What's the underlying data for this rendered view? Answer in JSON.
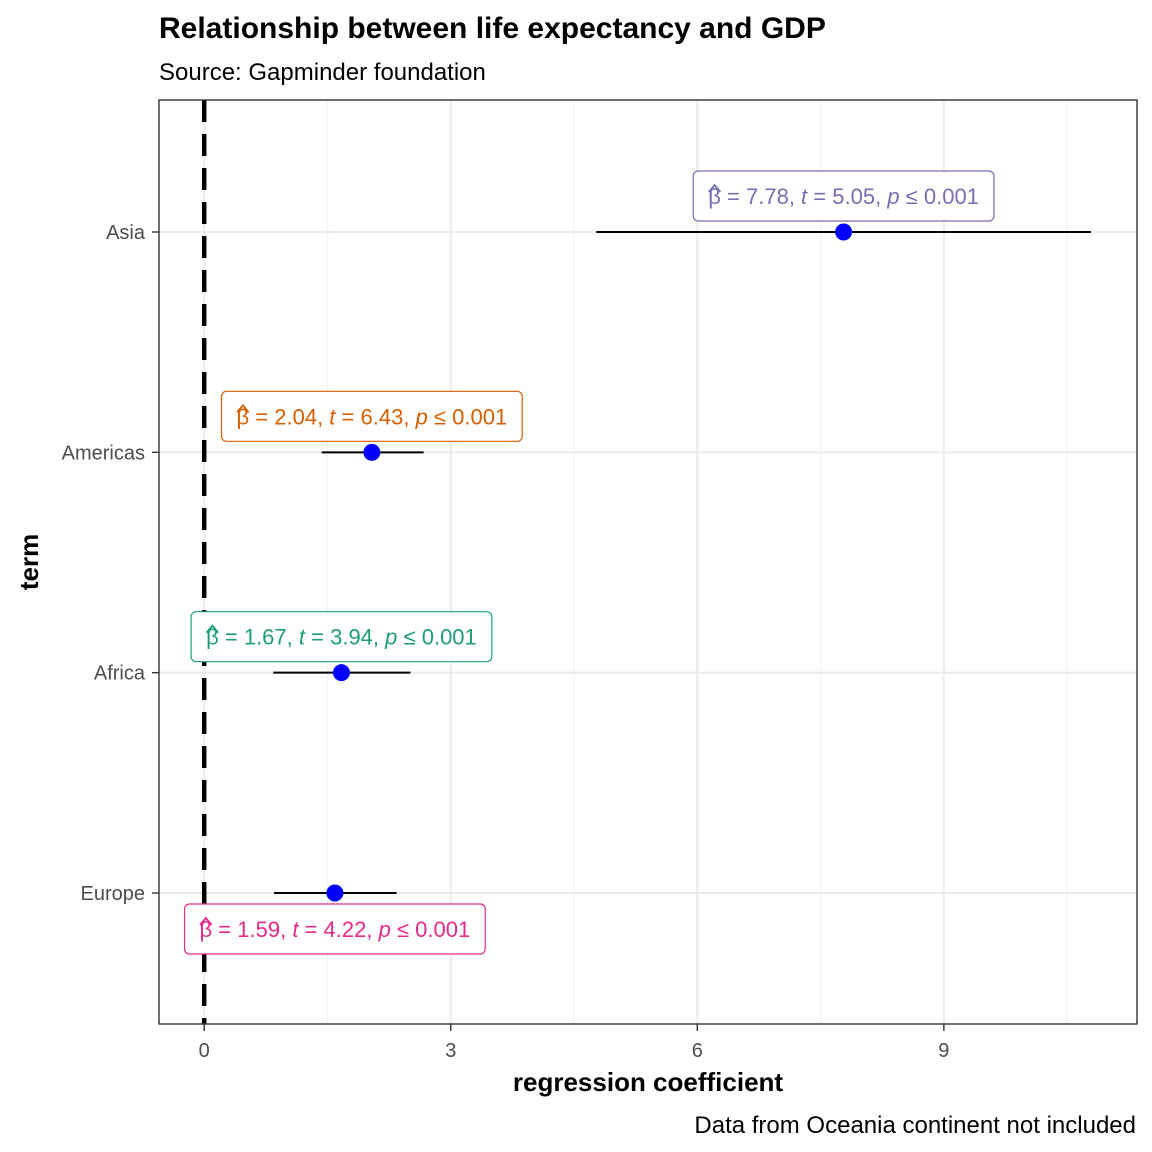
{
  "chart_data": {
    "type": "scatter",
    "title": "Relationship between life expectancy and GDP",
    "subtitle": "Source: Gapminder foundation",
    "caption": "Data from Oceania continent not included",
    "xlabel": "regression coefficient",
    "ylabel": "term",
    "xlim": [
      -0.55,
      11.35
    ],
    "xticks": [
      0,
      3,
      6,
      9
    ],
    "grid": true,
    "reference_line": {
      "x": 0,
      "style": "dashed"
    },
    "point_color": "#0000ff",
    "terms": [
      {
        "term": "Asia",
        "estimate": 7.78,
        "conf_low": 4.77,
        "conf_high": 10.79,
        "label": {
          "beta": "7.78",
          "t": "5.05",
          "p": "0.001"
        },
        "color": "#7570b3"
      },
      {
        "term": "Americas",
        "estimate": 2.04,
        "conf_low": 1.43,
        "conf_high": 2.67,
        "label": {
          "beta": "2.04",
          "t": "6.43",
          "p": "0.001"
        },
        "color": "#d95f02"
      },
      {
        "term": "Africa",
        "estimate": 1.67,
        "conf_low": 0.84,
        "conf_high": 2.51,
        "label": {
          "beta": "1.67",
          "t": "3.94",
          "p": "0.001"
        },
        "color": "#1b9e77"
      },
      {
        "term": "Europe",
        "estimate": 1.59,
        "conf_low": 0.85,
        "conf_high": 2.34,
        "label": {
          "beta": "1.59",
          "t": "4.22",
          "p": "0.001"
        },
        "color": "#e7298a"
      }
    ]
  }
}
